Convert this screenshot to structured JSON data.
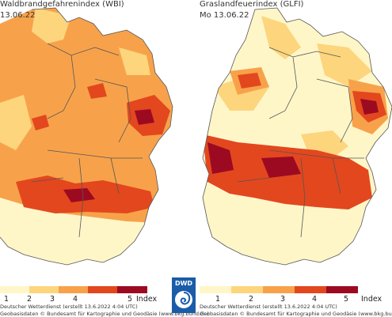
{
  "left_map": {
    "title": "Waldbrandgefahrenindex (WBI)",
    "date": "13.06.22",
    "legend": [
      "1",
      "2",
      "3",
      "4",
      "5"
    ],
    "index_label": "Index",
    "footer_line1": "Deutscher Wetterdienst (erstellt 13.6.2022 4:04 UTC)",
    "footer_line2": "Geobasisdaten © Bundesamt für Kartographie und Geodäsie (www.bkg.bund.de)"
  },
  "right_map": {
    "title": "Graslandfeuerindex (GLFI)",
    "date": "Mo 13.06.22",
    "legend": [
      "1",
      "2",
      "3",
      "4",
      "5"
    ],
    "index_label": "Index",
    "footer_line1": "Deutscher Wetterdienst (erstellt 13.6.2022 4:04 UTC)",
    "footer_line2": "Geobasisdaten © Bundesamt für Kartographie und Geodäsie (www.bkg.bund.de)"
  },
  "logo_text": "DWD",
  "colors": {
    "level1": "#fff6c8",
    "level2": "#fdd57d",
    "level3": "#f7a24a",
    "level4": "#e3471e",
    "level5": "#9c0a22",
    "border": "#555555",
    "logo_blue": "#1b5ca8"
  }
}
